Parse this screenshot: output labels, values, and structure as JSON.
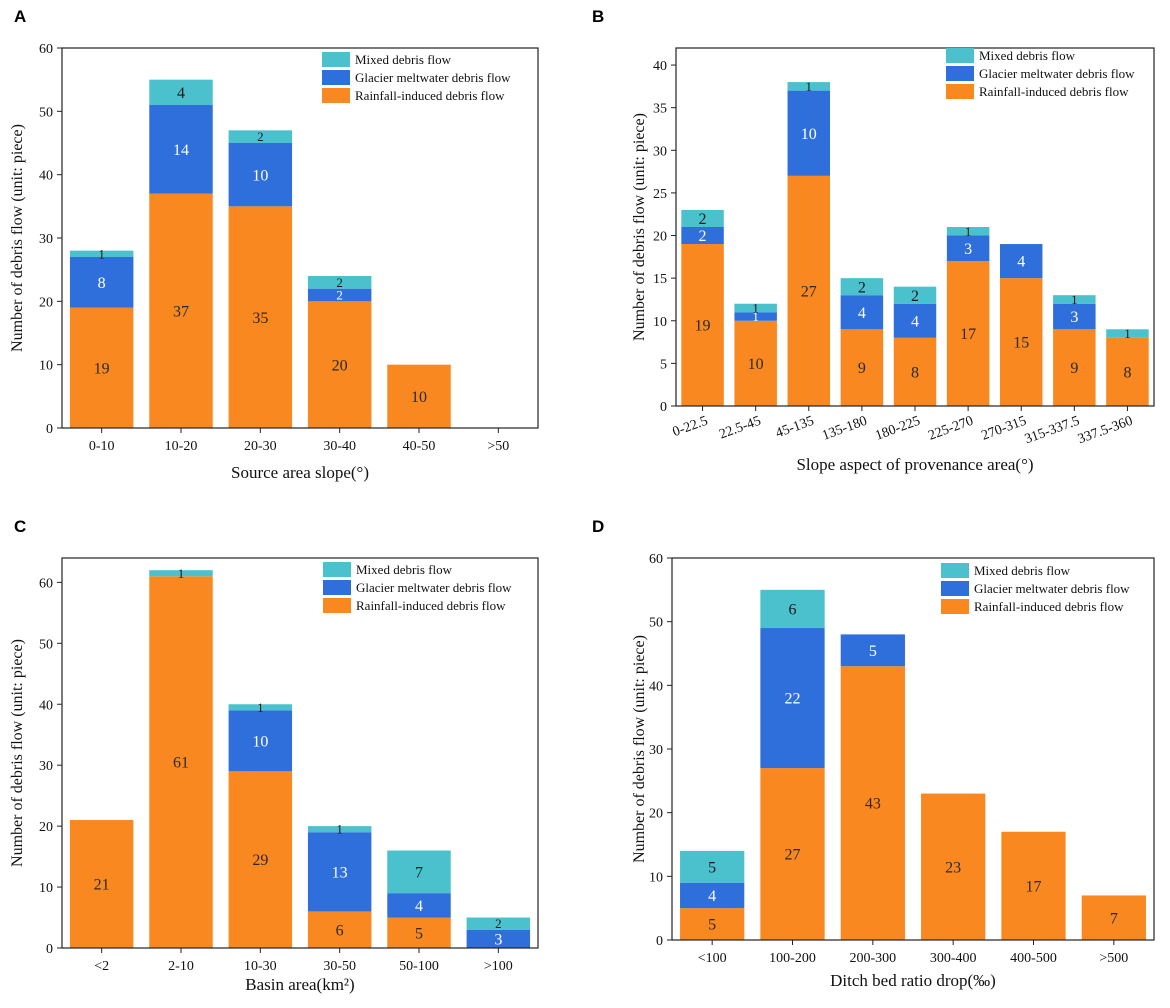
{
  "figure": {
    "panel_letters": [
      "A",
      "B",
      "C",
      "D"
    ],
    "colors": {
      "rainfall": "#F98820",
      "glacier": "#2F6FDB",
      "mixed": "#4BC1CE",
      "label_on_orange": "#2a2a2a",
      "label_on_blue": "#ffffff",
      "label_on_cyan": "#1a1a1a"
    }
  },
  "chart_data": [
    {
      "type": "bar",
      "stacked": true,
      "panel": "A",
      "title": "",
      "xlabel": "Source area slope(°)",
      "ylabel": "Number of debris flow (unit: piece)",
      "ylim": [
        0,
        60
      ],
      "yticks": [
        0,
        10,
        20,
        30,
        40,
        50,
        60
      ],
      "categories": [
        "0-10",
        "10-20",
        "20-30",
        "30-40",
        "40-50",
        ">50"
      ],
      "legend": [
        "Mixed debris flow",
        "Glacier meltwater debris flow",
        "Rainfall-induced debris flow"
      ],
      "legend_position": "top-right",
      "series": [
        {
          "name": "Rainfall-induced debris flow",
          "key": "rainfall",
          "values": [
            19,
            37,
            35,
            20,
            10,
            0
          ]
        },
        {
          "name": "Glacier meltwater debris flow",
          "key": "glacier",
          "values": [
            8,
            14,
            10,
            2,
            0,
            0
          ]
        },
        {
          "name": "Mixed debris flow",
          "key": "mixed",
          "values": [
            1,
            4,
            2,
            2,
            0,
            0
          ]
        }
      ]
    },
    {
      "type": "bar",
      "stacked": true,
      "panel": "B",
      "title": "",
      "xlabel": "Slope aspect of provenance area(°)",
      "ylabel": "Number of debris flow (unit: piece)",
      "ylim": [
        0,
        42
      ],
      "yticks": [
        0,
        5,
        10,
        15,
        20,
        25,
        30,
        35,
        40
      ],
      "categories": [
        "0-22.5",
        "22.5-45",
        "45-135",
        "135-180",
        "180-225",
        "225-270",
        "270-315",
        "315-337.5",
        "337.5-360"
      ],
      "legend": [
        "Mixed debris flow",
        "Glacier meltwater debris flow",
        "Rainfall-induced debris flow"
      ],
      "legend_position": "top-right",
      "series": [
        {
          "name": "Rainfall-induced debris flow",
          "key": "rainfall",
          "values": [
            19,
            10,
            27,
            9,
            8,
            17,
            15,
            9,
            8
          ]
        },
        {
          "name": "Glacier meltwater debris flow",
          "key": "glacier",
          "values": [
            2,
            1,
            10,
            4,
            4,
            3,
            4,
            3,
            0
          ]
        },
        {
          "name": "Mixed debris flow",
          "key": "mixed",
          "values": [
            2,
            1,
            1,
            2,
            2,
            1,
            0,
            1,
            1
          ]
        }
      ]
    },
    {
      "type": "bar",
      "stacked": true,
      "panel": "C",
      "title": "",
      "xlabel": "Basin area(km²)",
      "ylabel": "Number of debris flow (unit: piece)",
      "ylim": [
        0,
        64
      ],
      "yticks": [
        0,
        10,
        20,
        30,
        40,
        50,
        60
      ],
      "categories": [
        "<2",
        "2-10",
        "10-30",
        "30-50",
        "50-100",
        ">100"
      ],
      "legend": [
        "Mixed debris flow",
        "Glacier meltwater debris flow",
        "Rainfall-induced debris flow"
      ],
      "legend_position": "top-right",
      "series": [
        {
          "name": "Rainfall-induced debris flow",
          "key": "rainfall",
          "values": [
            21,
            61,
            29,
            6,
            5,
            0
          ]
        },
        {
          "name": "Glacier meltwater debris flow",
          "key": "glacier",
          "values": [
            0,
            0,
            10,
            13,
            4,
            3
          ]
        },
        {
          "name": "Mixed debris flow",
          "key": "mixed",
          "values": [
            0,
            1,
            1,
            1,
            7,
            2
          ]
        }
      ]
    },
    {
      "type": "bar",
      "stacked": true,
      "panel": "D",
      "title": "",
      "xlabel": "Ditch bed ratio drop(‰)",
      "ylabel": "Number of debris flow (unit: piece)",
      "ylim": [
        0,
        60
      ],
      "yticks": [
        0,
        10,
        20,
        30,
        40,
        50,
        60
      ],
      "categories": [
        "<100",
        "100-200",
        "200-300",
        "300-400",
        "400-500",
        ">500"
      ],
      "legend": [
        "Mixed debris flow",
        "Glacier meltwater debris flow",
        "Rainfall-induced debris flow"
      ],
      "legend_position": "top-right",
      "series": [
        {
          "name": "Rainfall-induced debris flow",
          "key": "rainfall",
          "values": [
            5,
            27,
            43,
            23,
            17,
            7
          ]
        },
        {
          "name": "Glacier meltwater debris flow",
          "key": "glacier",
          "values": [
            4,
            22,
            5,
            0,
            0,
            0
          ]
        },
        {
          "name": "Mixed debris flow",
          "key": "mixed",
          "values": [
            5,
            6,
            0,
            0,
            0,
            0
          ]
        }
      ]
    }
  ]
}
